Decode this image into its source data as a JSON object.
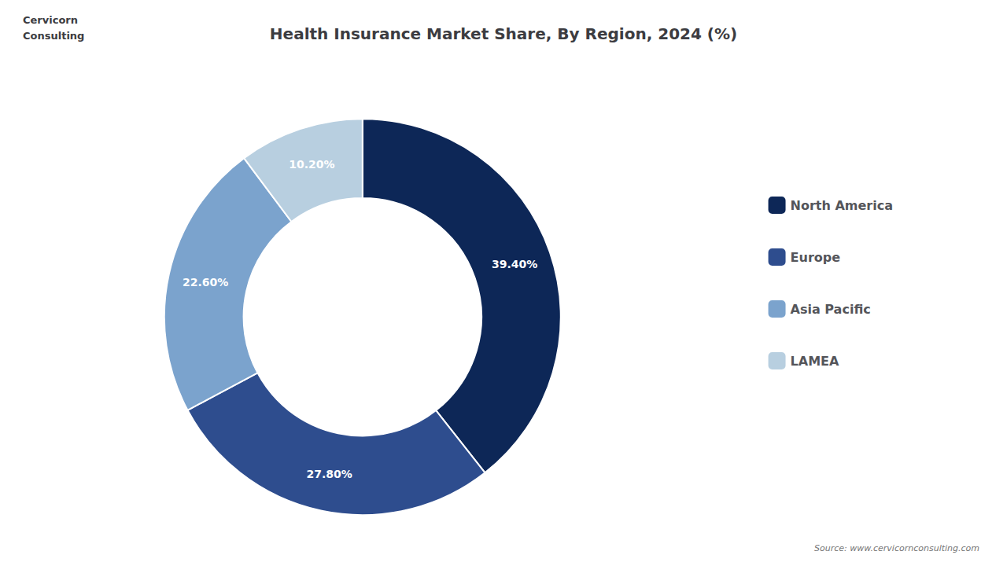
{
  "chart_data": {
    "type": "pie",
    "title": "Health Insurance Market Share, By Region, 2024 (%)",
    "categories": [
      "North America",
      "Europe",
      "Asia Pacific",
      "LAMEA"
    ],
    "values": [
      39.4,
      27.8,
      22.6,
      10.2
    ],
    "value_labels": [
      "39.40%",
      "27.80%",
      "22.60%",
      "10.20%"
    ],
    "colors": [
      "#0d2757",
      "#2e4d8e",
      "#7ba3cd",
      "#b8cfe0"
    ],
    "data_labels": true,
    "legend": "right",
    "annotations": [
      "Cervicorn",
      "Consulting",
      "Source: www.cervicornconsulting.com"
    ]
  }
}
